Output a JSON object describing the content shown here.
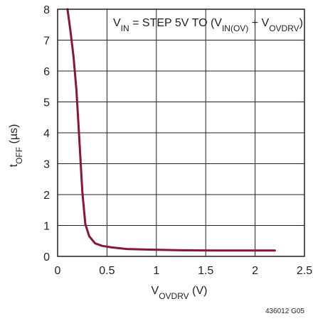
{
  "colors": {
    "series": "#8a1538",
    "grid": "#231f20",
    "text": "#231f20",
    "background": "#ffffff"
  },
  "chart_data": {
    "type": "line",
    "title": "",
    "xlabel": {
      "main": "V",
      "sub": "OVDRV",
      "suffix": " (V)"
    },
    "ylabel": {
      "main": "t",
      "sub": "OFF",
      "suffix": " (µs)"
    },
    "xlim": [
      0,
      2.5
    ],
    "ylim": [
      0,
      8
    ],
    "xticks": [
      0,
      0.5,
      1,
      1.5,
      2,
      2.5
    ],
    "yticks": [
      0,
      1,
      2,
      3,
      4,
      5,
      6,
      7,
      8
    ],
    "xtick_labels": [
      "0",
      "0.5",
      "1",
      "1.5",
      "2",
      "2.5"
    ],
    "ytick_labels": [
      "0",
      "1",
      "2",
      "3",
      "4",
      "5",
      "6",
      "7",
      "8"
    ],
    "grid": true,
    "annotation": {
      "parts": [
        {
          "text": "V",
          "baseline": "normal"
        },
        {
          "text": "IN",
          "baseline": "sub"
        },
        {
          "text": " = STEP 5V TO (V",
          "baseline": "normal"
        },
        {
          "text": "IN(OV)",
          "baseline": "sub"
        },
        {
          "text": " + V",
          "baseline": "normal"
        },
        {
          "text": "OVDRV",
          "baseline": "sub"
        },
        {
          "text": ")",
          "baseline": "normal"
        }
      ],
      "placement": "top-right"
    },
    "figure_id": "436012 G05",
    "series": [
      {
        "x": [
          0.1,
          0.13,
          0.16,
          0.19,
          0.22,
          0.25,
          0.28,
          0.32,
          0.38,
          0.45,
          0.55,
          0.7,
          0.9,
          1.2,
          1.6,
          2.0,
          2.2
        ],
        "y": [
          8.0,
          7.3,
          6.5,
          5.4,
          3.8,
          2.1,
          1.05,
          0.65,
          0.42,
          0.34,
          0.29,
          0.24,
          0.22,
          0.2,
          0.19,
          0.19,
          0.19
        ]
      }
    ]
  }
}
